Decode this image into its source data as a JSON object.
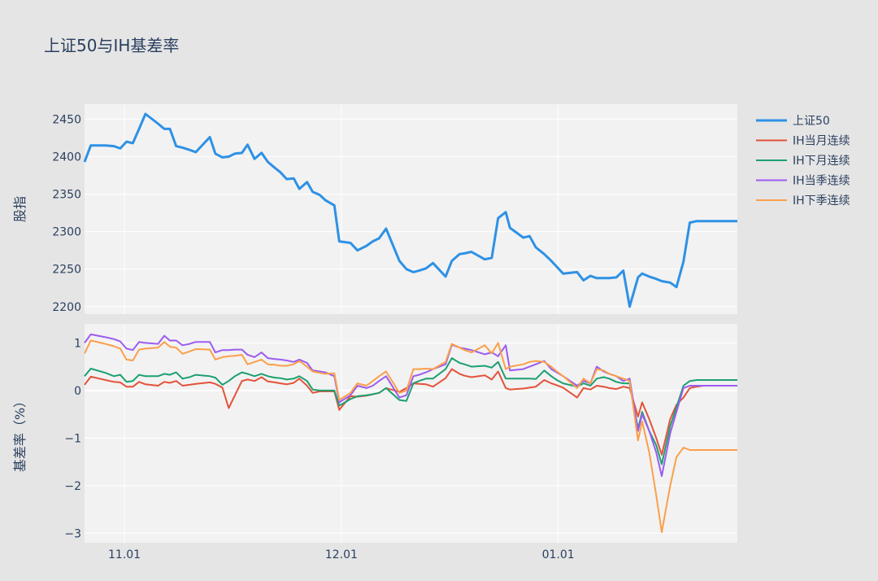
{
  "chart_data": {
    "type": "line",
    "title": "上证50与IH基差率",
    "x_ticks": [
      "11.01",
      "12.01",
      "01.01"
    ],
    "x_tick_positions": [
      10,
      41,
      72
    ],
    "x_range": [
      4.3,
      97.6
    ],
    "panels": [
      {
        "ylabel": "股指",
        "ylim": [
          2190,
          2470
        ],
        "yticks": [
          2200,
          2250,
          2300,
          2350,
          2400,
          2450
        ],
        "series": [
          {
            "name": "上证50",
            "color": "#2e91e5",
            "x": [
              4.3,
              5.2,
              7.3,
              8.5,
              9.4,
              10.3,
              11.2,
              12.1,
              13.0,
              14.8,
              15.7,
              16.5,
              17.4,
              18.3,
              19.3,
              20.2,
              22.2,
              23.0,
              24.0,
              24.9,
              25.8,
              26.8,
              27.6,
              28.6,
              29.6,
              30.5,
              31.5,
              32.3,
              33.2,
              34.2,
              35.0,
              36.1,
              36.9,
              37.9,
              38.7,
              40.0,
              40.7,
              42.3,
              43.3,
              44.6,
              45.5,
              46.4,
              47.4,
              49.3,
              50.3,
              51.3,
              52.1,
              53.1,
              54.1,
              55.9,
              56.8,
              57.9,
              58.6,
              59.6,
              61.5,
              62.5,
              63.4,
              64.5,
              65.1,
              67.0,
              67.9,
              68.8,
              70.0,
              71.0,
              71.8,
              72.7,
              74.7,
              75.6,
              76.6,
              77.5,
              78.5,
              79.3,
              80.3,
              81.3,
              82.2,
              83.4,
              84.0,
              85.0,
              86.0,
              86.8,
              88.0,
              88.9,
              89.9,
              90.8,
              91.8,
              92.7,
              93.6,
              94.6,
              95.6,
              96.6,
              97.6
            ],
            "y": [
              2393,
              2415,
              2415,
              2414,
              2411,
              2420,
              2418,
              2437,
              2457,
              2444,
              2437,
              2437,
              2414,
              2412,
              2409,
              2406,
              2426,
              2404,
              2399,
              2400,
              2404,
              2405,
              2416,
              2397,
              2405,
              2393,
              2385,
              2379,
              2370,
              2371,
              2357,
              2366,
              2353,
              2349,
              2342,
              2335,
              2287,
              2285,
              2275,
              2281,
              2287,
              2291,
              2304,
              2261,
              2250,
              2246,
              2248,
              2251,
              2258,
              2240,
              2261,
              2270,
              2271,
              2273,
              2263,
              2265,
              2318,
              2326,
              2305,
              2292,
              2294,
              2279,
              2270,
              2261,
              2253,
              2244,
              2246,
              2235,
              2241,
              2238,
              2238,
              2238,
              2239,
              2248,
              2200,
              2239,
              2244,
              2240,
              2237,
              2234,
              2232,
              2226,
              2260,
              2312,
              2314,
              2314,
              2314,
              2314,
              2314,
              2314,
              2314
            ]
          }
        ]
      },
      {
        "ylabel": "基差率（%）",
        "ylim": [
          -3.2,
          1.4
        ],
        "yticks": [
          1,
          0,
          -1,
          -2,
          -3
        ],
        "ytick_labels": [
          "1",
          "0",
          "−1",
          "−2",
          "−3"
        ],
        "series": [
          {
            "name": "IH当月连续",
            "color": "#e4523a",
            "x": [
              4.3,
              5.2,
              7.3,
              8.5,
              9.4,
              10.3,
              11.2,
              12.1,
              13.0,
              14.8,
              15.7,
              16.5,
              17.4,
              18.3,
              19.3,
              20.2,
              22.2,
              23.0,
              24.0,
              24.9,
              25.8,
              26.8,
              27.6,
              28.6,
              29.6,
              30.5,
              31.5,
              32.3,
              33.2,
              34.2,
              35.0,
              36.1,
              36.9,
              37.9,
              38.7,
              40.0,
              40.7,
              42.3,
              43.3,
              44.6,
              45.5,
              46.4,
              47.4,
              49.3,
              50.3,
              51.3,
              52.1,
              53.1,
              54.1,
              55.9,
              56.8,
              57.9,
              58.6,
              59.6,
              61.5,
              62.5,
              63.4,
              64.5,
              65.1,
              67.0,
              67.9,
              68.8,
              70.0,
              71.0,
              71.8,
              72.7,
              74.7,
              75.6,
              76.6,
              77.5,
              78.5,
              79.3,
              80.3,
              81.3,
              82.2,
              83.4,
              84.0,
              85.0,
              86.0,
              86.8,
              88.0,
              88.9,
              89.9,
              90.8,
              91.8,
              92.7,
              93.6,
              94.6,
              95.6,
              96.6,
              97.6
            ],
            "y": [
              0.12,
              0.29,
              0.22,
              0.18,
              0.17,
              0.08,
              0.08,
              0.18,
              0.13,
              0.1,
              0.18,
              0.16,
              0.2,
              0.1,
              0.12,
              0.14,
              0.17,
              0.14,
              0.06,
              -0.37,
              -0.1,
              0.2,
              0.23,
              0.2,
              0.28,
              0.19,
              0.17,
              0.15,
              0.13,
              0.16,
              0.25,
              0.1,
              -0.05,
              -0.02,
              -0.02,
              -0.02,
              -0.41,
              -0.12,
              -0.13,
              -0.11,
              -0.08,
              -0.05,
              0.05,
              -0.03,
              0.05,
              0.15,
              0.14,
              0.13,
              0.08,
              0.26,
              0.45,
              0.35,
              0.31,
              0.28,
              0.32,
              0.23,
              0.4,
              0.05,
              0.02,
              0.04,
              0.06,
              0.08,
              0.22,
              0.15,
              0.11,
              0.06,
              -0.15,
              0.05,
              0.02,
              0.1,
              0.08,
              0.05,
              0.03,
              0.08,
              0.05,
              -0.55,
              -0.25,
              -0.6,
              -1.0,
              -1.35,
              -0.6,
              -0.3,
              -0.15,
              0.05,
              0.08,
              0.1,
              0.1,
              0.1,
              0.1,
              0.1,
              0.1
            ]
          },
          {
            "name": "IH下月连续",
            "color": "#1ca071",
            "x": [
              4.3,
              5.2,
              7.3,
              8.5,
              9.4,
              10.3,
              11.2,
              12.1,
              13.0,
              14.8,
              15.7,
              16.5,
              17.4,
              18.3,
              19.3,
              20.2,
              22.2,
              23.0,
              24.0,
              24.9,
              25.8,
              26.8,
              27.6,
              28.6,
              29.6,
              30.5,
              31.5,
              32.3,
              33.2,
              34.2,
              35.0,
              36.1,
              36.9,
              37.9,
              38.7,
              40.0,
              40.7,
              42.3,
              43.3,
              44.6,
              45.5,
              46.4,
              47.4,
              49.3,
              50.3,
              51.3,
              52.1,
              53.1,
              54.1,
              55.9,
              56.8,
              57.9,
              58.6,
              59.6,
              61.5,
              62.5,
              63.4,
              64.5,
              65.1,
              67.0,
              67.9,
              68.8,
              70.0,
              71.0,
              71.8,
              72.7,
              74.7,
              75.6,
              76.6,
              77.5,
              78.5,
              79.3,
              80.3,
              81.3,
              82.2,
              83.4,
              84.0,
              85.0,
              86.0,
              86.8,
              88.0,
              88.9,
              89.9,
              90.8,
              91.8,
              92.7,
              93.6,
              94.6,
              95.6,
              96.6,
              97.6
            ],
            "y": [
              0.3,
              0.46,
              0.37,
              0.3,
              0.33,
              0.18,
              0.2,
              0.33,
              0.3,
              0.3,
              0.35,
              0.33,
              0.38,
              0.25,
              0.28,
              0.33,
              0.3,
              0.27,
              0.12,
              0.2,
              0.3,
              0.38,
              0.35,
              0.3,
              0.35,
              0.3,
              0.27,
              0.26,
              0.23,
              0.25,
              0.3,
              0.2,
              0.02,
              0.0,
              0.0,
              0.0,
              -0.32,
              -0.18,
              -0.12,
              -0.1,
              -0.08,
              -0.05,
              0.05,
              -0.2,
              -0.22,
              0.15,
              0.2,
              0.25,
              0.25,
              0.45,
              0.68,
              0.58,
              0.55,
              0.5,
              0.52,
              0.48,
              0.6,
              0.25,
              0.25,
              0.25,
              0.25,
              0.24,
              0.42,
              0.3,
              0.22,
              0.15,
              0.08,
              0.15,
              0.1,
              0.25,
              0.28,
              0.25,
              0.18,
              0.15,
              0.15,
              -0.8,
              -0.45,
              -0.85,
              -1.15,
              -1.55,
              -0.75,
              -0.35,
              0.1,
              0.2,
              0.22,
              0.22,
              0.22,
              0.22,
              0.22,
              0.22,
              0.22
            ]
          },
          {
            "name": "IH当季连续",
            "color": "#9b5cf0",
            "x": [
              4.3,
              5.2,
              7.3,
              8.5,
              9.4,
              10.3,
              11.2,
              12.1,
              13.0,
              14.8,
              15.7,
              16.5,
              17.4,
              18.3,
              19.3,
              20.2,
              22.2,
              23.0,
              24.0,
              24.9,
              25.8,
              26.8,
              27.6,
              28.6,
              29.6,
              30.5,
              31.5,
              32.3,
              33.2,
              34.2,
              35.0,
              36.1,
              36.9,
              37.9,
              38.7,
              40.0,
              40.7,
              42.3,
              43.3,
              44.6,
              45.5,
              46.4,
              47.4,
              49.3,
              50.3,
              51.3,
              52.1,
              53.1,
              54.1,
              55.9,
              56.8,
              57.9,
              58.6,
              59.6,
              61.5,
              62.5,
              63.4,
              64.5,
              65.1,
              67.0,
              67.9,
              68.8,
              70.0,
              71.0,
              71.8,
              72.7,
              74.7,
              75.6,
              76.6,
              77.5,
              78.5,
              79.3,
              80.3,
              81.3,
              82.2,
              83.4,
              84.0,
              85.0,
              86.0,
              86.8,
              88.0,
              88.9,
              89.9,
              90.8,
              91.8,
              92.7,
              93.6,
              94.6,
              95.6,
              96.6,
              97.6
            ],
            "y": [
              1.0,
              1.18,
              1.12,
              1.08,
              1.03,
              0.88,
              0.85,
              1.02,
              1.0,
              0.98,
              1.15,
              1.05,
              1.05,
              0.95,
              0.98,
              1.02,
              1.02,
              0.8,
              0.85,
              0.85,
              0.86,
              0.86,
              0.75,
              0.7,
              0.8,
              0.68,
              0.66,
              0.65,
              0.63,
              0.6,
              0.65,
              0.58,
              0.42,
              0.4,
              0.38,
              0.3,
              -0.25,
              -0.1,
              0.1,
              0.05,
              0.1,
              0.2,
              0.3,
              -0.15,
              -0.1,
              0.3,
              0.33,
              0.38,
              0.45,
              0.55,
              0.96,
              0.9,
              0.88,
              0.85,
              0.76,
              0.8,
              0.72,
              0.95,
              0.42,
              0.45,
              0.5,
              0.55,
              0.62,
              0.45,
              0.38,
              0.3,
              0.1,
              0.2,
              0.15,
              0.5,
              0.4,
              0.35,
              0.3,
              0.2,
              0.25,
              -0.85,
              -0.5,
              -0.85,
              -1.3,
              -1.8,
              -0.9,
              -0.45,
              0.05,
              0.1,
              0.1,
              0.1,
              0.1,
              0.1,
              0.1,
              0.1,
              0.1
            ]
          },
          {
            "name": "IH下季连续",
            "color": "#fb9f4a",
            "x": [
              4.3,
              5.2,
              7.3,
              8.5,
              9.4,
              10.3,
              11.2,
              12.1,
              13.0,
              14.8,
              15.7,
              16.5,
              17.4,
              18.3,
              19.3,
              20.2,
              22.2,
              23.0,
              24.0,
              24.9,
              25.8,
              26.8,
              27.6,
              28.6,
              29.6,
              30.5,
              31.5,
              32.3,
              33.2,
              34.2,
              35.0,
              36.1,
              36.9,
              37.9,
              38.7,
              40.0,
              40.7,
              42.3,
              43.3,
              44.6,
              45.5,
              46.4,
              47.4,
              49.3,
              50.3,
              51.3,
              52.1,
              53.1,
              54.1,
              55.9,
              56.8,
              57.9,
              58.6,
              59.6,
              61.5,
              62.5,
              63.4,
              64.5,
              65.1,
              67.0,
              67.9,
              68.8,
              70.0,
              71.0,
              71.8,
              72.7,
              74.7,
              75.6,
              76.6,
              77.5,
              78.5,
              79.3,
              80.3,
              81.3,
              82.2,
              83.4,
              84.0,
              85.0,
              86.0,
              86.8,
              88.0,
              88.9,
              89.9,
              90.8,
              91.8,
              92.7,
              93.6,
              94.6,
              95.6,
              96.6,
              97.6
            ],
            "y": [
              0.78,
              1.05,
              0.98,
              0.93,
              0.88,
              0.65,
              0.63,
              0.86,
              0.88,
              0.9,
              1.02,
              0.92,
              0.9,
              0.77,
              0.82,
              0.87,
              0.86,
              0.65,
              0.7,
              0.72,
              0.73,
              0.75,
              0.55,
              0.6,
              0.65,
              0.55,
              0.54,
              0.52,
              0.52,
              0.55,
              0.62,
              0.5,
              0.4,
              0.37,
              0.35,
              0.36,
              -0.2,
              -0.05,
              0.15,
              0.1,
              0.2,
              0.3,
              0.4,
              -0.05,
              0.0,
              0.45,
              0.45,
              0.46,
              0.45,
              0.6,
              0.98,
              0.9,
              0.85,
              0.8,
              0.95,
              0.78,
              1.0,
              0.45,
              0.5,
              0.55,
              0.6,
              0.62,
              0.6,
              0.5,
              0.4,
              0.3,
              0.05,
              0.25,
              0.15,
              0.45,
              0.42,
              0.35,
              0.3,
              0.25,
              0.2,
              -1.05,
              -0.65,
              -1.3,
              -2.2,
              -2.98,
              -2.0,
              -1.4,
              -1.2,
              -1.25,
              -1.25,
              -1.25,
              -1.25,
              -1.25,
              -1.25,
              -1.25,
              -1.25
            ]
          }
        ]
      }
    ],
    "legend": {
      "placement": "right-top",
      "entries": [
        "上证50",
        "IH当月连续",
        "IH下月连续",
        "IH当季连续",
        "IH下季连续"
      ]
    }
  }
}
